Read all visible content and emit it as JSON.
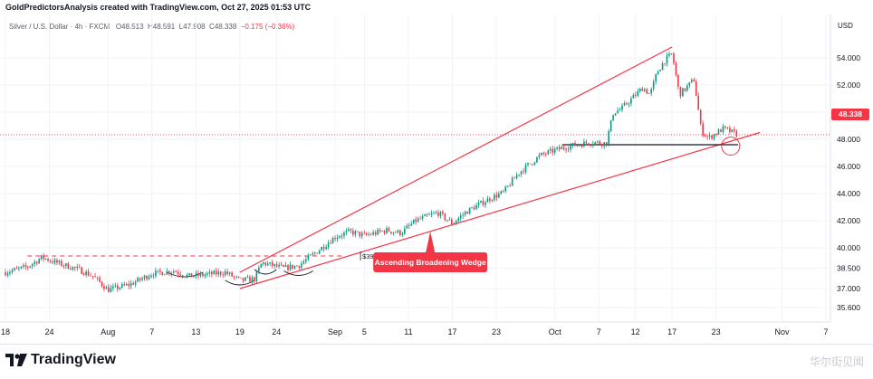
{
  "header": {
    "credit": "GoldPredictorsAnalysis created with TradingView.com, Oct 27, 2025 01:53 UTC"
  },
  "legend": {
    "symbol": "Silver / U.S. Dollar · 4h · FXCM",
    "open": "O48.513",
    "high": "H48.591",
    "low": "L47.908",
    "close": "C48.338",
    "change": "−0.175 (−0.36%)"
  },
  "axis": {
    "currency": "USD",
    "last_price": "48.338"
  },
  "footer": {
    "logo_text": "TradingView",
    "watermark": "华尔街见闻"
  },
  "colors": {
    "wedge": "#f23645",
    "support": "#131722",
    "up_candle": "#089981",
    "down_candle": "#f23645"
  },
  "chart_data": {
    "type": "candlestick",
    "title": "Silver / U.S. Dollar · 4h · FXCM",
    "ylim": [
      35.2,
      55.6
    ],
    "y_ticks": [
      "54.000",
      "52.000",
      "50.000",
      "48.000",
      "46.000",
      "44.000",
      "42.000",
      "40.000",
      "38.500",
      "37.000",
      "35.600"
    ],
    "y_tick_values": [
      54.0,
      52.0,
      50.0,
      48.0,
      46.0,
      44.0,
      42.0,
      40.0,
      38.5,
      37.0,
      35.6
    ],
    "x_ticks": [
      "18",
      "24",
      "Aug",
      "7",
      "13",
      "19",
      "24",
      "Sep",
      "5",
      "11",
      "17",
      "23",
      "Oct",
      "7",
      "12",
      "17",
      "23",
      "Nov",
      "7"
    ],
    "x_tick_dates": [
      "2025-07-18",
      "2025-07-24",
      "2025-08-01",
      "2025-08-07",
      "2025-08-13",
      "2025-08-19",
      "2025-08-24",
      "2025-09-01",
      "2025-09-05",
      "2025-09-11",
      "2025-09-17",
      "2025-09-23",
      "2025-10-01",
      "2025-10-07",
      "2025-10-12",
      "2025-10-17",
      "2025-10-23",
      "2025-11-01",
      "2025-11-07"
    ],
    "xlim": [
      "2025-07-18",
      "2025-11-07"
    ],
    "price_path": [
      {
        "date": "2025-07-18",
        "price": 38.2
      },
      {
        "date": "2025-07-21",
        "price": 38.6
      },
      {
        "date": "2025-07-23",
        "price": 39.3
      },
      {
        "date": "2025-07-25",
        "price": 38.9
      },
      {
        "date": "2025-07-28",
        "price": 38.4
      },
      {
        "date": "2025-07-30",
        "price": 37.9
      },
      {
        "date": "2025-08-01",
        "price": 36.9
      },
      {
        "date": "2025-08-04",
        "price": 37.3
      },
      {
        "date": "2025-08-07",
        "price": 38.1
      },
      {
        "date": "2025-08-10",
        "price": 38.3
      },
      {
        "date": "2025-08-12",
        "price": 37.9
      },
      {
        "date": "2025-08-14",
        "price": 38.0
      },
      {
        "date": "2025-08-17",
        "price": 38.2
      },
      {
        "date": "2025-08-19",
        "price": 37.6
      },
      {
        "date": "2025-08-21",
        "price": 37.7
      },
      {
        "date": "2025-08-22",
        "price": 38.9
      },
      {
        "date": "2025-08-25",
        "price": 38.5
      },
      {
        "date": "2025-08-27",
        "price": 38.7
      },
      {
        "date": "2025-08-29",
        "price": 39.5
      },
      {
        "date": "2025-09-01",
        "price": 40.8
      },
      {
        "date": "2025-09-03",
        "price": 41.2
      },
      {
        "date": "2025-09-05",
        "price": 40.9
      },
      {
        "date": "2025-09-08",
        "price": 41.3
      },
      {
        "date": "2025-09-10",
        "price": 41.1
      },
      {
        "date": "2025-09-12",
        "price": 42.0
      },
      {
        "date": "2025-09-15",
        "price": 42.6
      },
      {
        "date": "2025-09-17",
        "price": 41.8
      },
      {
        "date": "2025-09-19",
        "price": 42.7
      },
      {
        "date": "2025-09-22",
        "price": 43.6
      },
      {
        "date": "2025-09-24",
        "price": 44.1
      },
      {
        "date": "2025-09-26",
        "price": 45.5
      },
      {
        "date": "2025-09-29",
        "price": 46.8
      },
      {
        "date": "2025-10-01",
        "price": 47.2
      },
      {
        "date": "2025-10-03",
        "price": 47.5
      },
      {
        "date": "2025-10-06",
        "price": 47.8
      },
      {
        "date": "2025-10-08",
        "price": 47.7
      },
      {
        "date": "2025-10-09",
        "price": 50.0
      },
      {
        "date": "2025-10-10",
        "price": 50.2
      },
      {
        "date": "2025-10-13",
        "price": 51.8
      },
      {
        "date": "2025-10-14",
        "price": 51.3
      },
      {
        "date": "2025-10-15",
        "price": 53.0
      },
      {
        "date": "2025-10-16",
        "price": 53.8
      },
      {
        "date": "2025-10-17",
        "price": 54.3
      },
      {
        "date": "2025-10-18",
        "price": 51.3
      },
      {
        "date": "2025-10-20",
        "price": 52.4
      },
      {
        "date": "2025-10-21",
        "price": 48.6
      },
      {
        "date": "2025-10-22",
        "price": 48.1
      },
      {
        "date": "2025-10-24",
        "price": 48.8
      },
      {
        "date": "2025-10-26",
        "price": 48.338
      }
    ],
    "annotations": {
      "wedge_label": "Ascending Broadening Wedge",
      "level_label": "$39.40",
      "level_value": 39.4,
      "upper_trendline": [
        {
          "date": "2025-08-19",
          "price": 38.2
        },
        {
          "date": "2025-10-17",
          "price": 54.8
        }
      ],
      "lower_trendline": [
        {
          "date": "2025-08-19",
          "price": 37.0
        },
        {
          "date": "2025-10-29",
          "price": 48.5
        }
      ],
      "support_line": {
        "from": "2025-10-02",
        "to": "2025-10-26",
        "price": 47.6
      },
      "level_line": {
        "from": "2025-07-21",
        "to": "2025-09-02",
        "price": 39.4
      },
      "current_price": 48.338
    }
  }
}
